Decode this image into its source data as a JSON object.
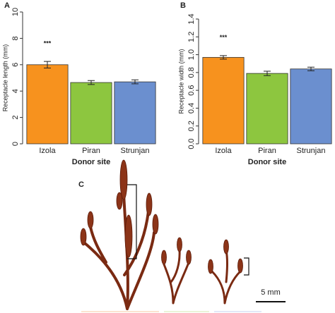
{
  "chart_data": [
    {
      "type": "bar",
      "panel_label": "A",
      "annotation": "***",
      "x_label": "Donor site",
      "y_label": "Receptacle length (mm)",
      "categories": [
        "Izola",
        "Piran",
        "Strunjan"
      ],
      "values": [
        6.0,
        4.65,
        4.7
      ],
      "errors": [
        0.25,
        0.15,
        0.15
      ],
      "colors": [
        "#f7921e",
        "#8dc63f",
        "#6b8fcf"
      ],
      "ylim": [
        0,
        10
      ],
      "yticks": [
        0,
        2,
        4,
        6,
        8,
        10
      ]
    },
    {
      "type": "bar",
      "panel_label": "B",
      "annotation": "***",
      "x_label": "Donor site",
      "y_label": "Receptacle width (mm)",
      "categories": [
        "Izola",
        "Piran",
        "Strunjan"
      ],
      "values": [
        0.97,
        0.79,
        0.84
      ],
      "errors": [
        0.02,
        0.025,
        0.02
      ],
      "colors": [
        "#f7921e",
        "#8dc63f",
        "#6b8fcf"
      ],
      "ylim": [
        0,
        1.4
      ],
      "yticks": [
        {
          "value": 0,
          "label": "0.0"
        },
        0.2,
        0.4,
        0.6,
        0.8,
        {
          "value": 1,
          "label": "1.0"
        },
        1.2,
        1.4
      ]
    }
  ],
  "panel_c": {
    "label": "C",
    "scale_bar": "5 mm"
  }
}
